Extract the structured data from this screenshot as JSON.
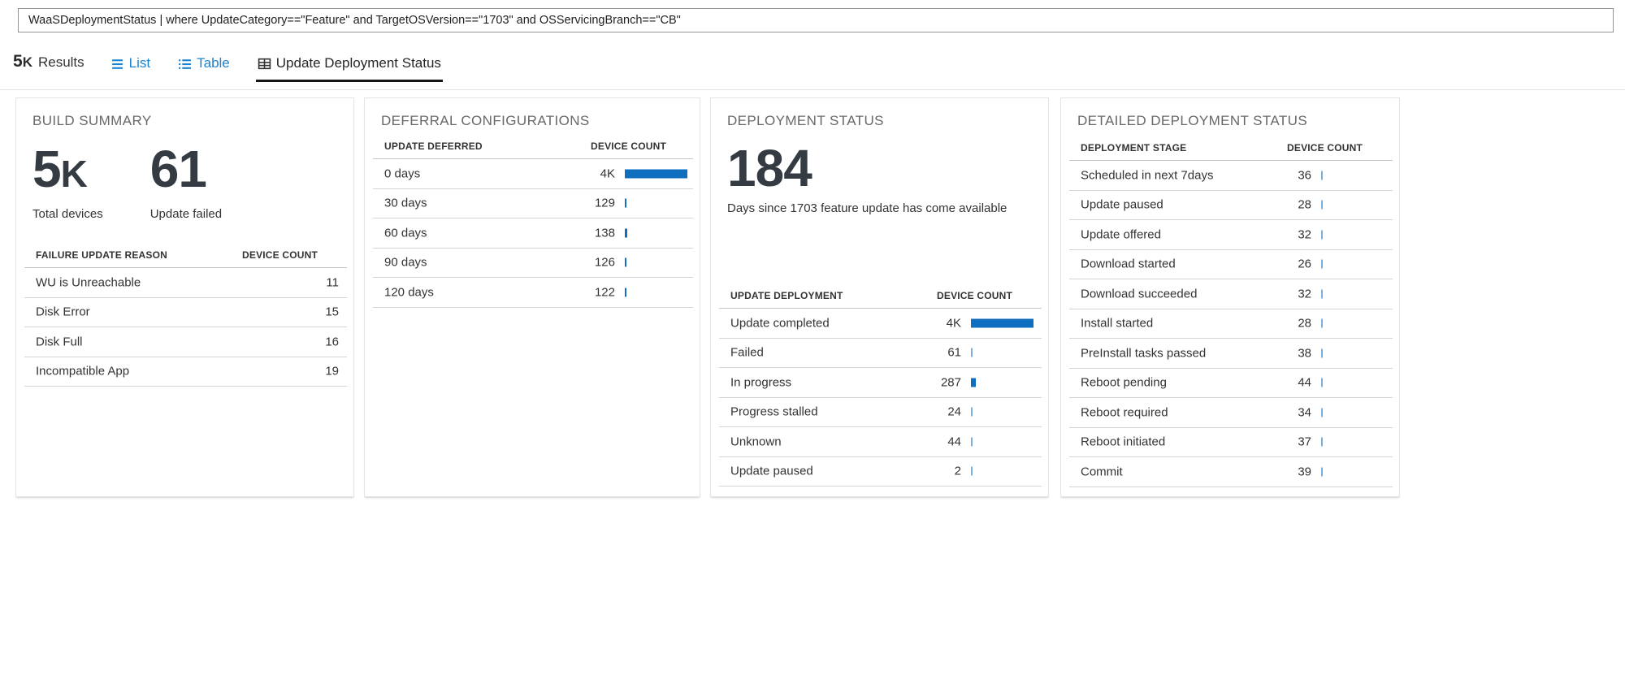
{
  "query_bar": {
    "value": "WaaSDeploymentStatus | where UpdateCategory==\"Feature\" and TargetOSVersion==\"1703\" and OSServicingBranch==\"CB\""
  },
  "results_bar": {
    "count_value": "5",
    "count_suffix": "K",
    "results_label": "Results",
    "tabs": [
      {
        "label": "List",
        "icon": "list-icon",
        "active": false
      },
      {
        "label": "Table",
        "icon": "table-icon",
        "active": false
      },
      {
        "label": "Update Deployment Status",
        "icon": "grid-table-icon",
        "active": true
      }
    ]
  },
  "colors": {
    "accent_blue": "#0e6fc1",
    "tab_blue": "#1e83d0",
    "big_number": "#343b42",
    "title_gray": "#686868"
  },
  "panels": {
    "build_summary": {
      "title": "BUILD SUMMARY",
      "stats": [
        {
          "value": "5",
          "suffix": "K",
          "label": "Total devices"
        },
        {
          "value": "61",
          "suffix": "",
          "label": "Update failed"
        }
      ],
      "table": {
        "col1": "FAILURE UPDATE REASON",
        "col2": "DEVICE COUNT",
        "has_bars": false,
        "max": 4000,
        "rows": [
          {
            "label": "WU is Unreachable",
            "value": "11",
            "n": 11
          },
          {
            "label": "Disk Error",
            "value": "15",
            "n": 15
          },
          {
            "label": "Disk Full",
            "value": "16",
            "n": 16
          },
          {
            "label": "Incompatible App",
            "value": "19",
            "n": 19
          }
        ]
      }
    },
    "deferral": {
      "title": "DEFERRAL CONFIGURATIONS",
      "table": {
        "col1": "UPDATE DEFERRED",
        "col2": "DEVICE COUNT",
        "has_bars": true,
        "max": 4000,
        "rows": [
          {
            "label": "0 days",
            "value": "4K",
            "n": 4000
          },
          {
            "label": "30 days",
            "value": "129",
            "n": 129
          },
          {
            "label": "60 days",
            "value": "138",
            "n": 138
          },
          {
            "label": "90 days",
            "value": "126",
            "n": 126
          },
          {
            "label": "120 days",
            "value": "122",
            "n": 122
          }
        ]
      }
    },
    "deployment_status": {
      "title": "DEPLOYMENT STATUS",
      "stat": {
        "value": "184",
        "suffix": "",
        "label": "Days since 1703 feature update has come available"
      },
      "table": {
        "col1": "UPDATE DEPLOYMENT",
        "col2": "DEVICE COUNT",
        "has_bars": true,
        "max": 4000,
        "rows": [
          {
            "label": "Update completed",
            "value": "4K",
            "n": 4000
          },
          {
            "label": "Failed",
            "value": "61",
            "n": 61
          },
          {
            "label": "In progress",
            "value": "287",
            "n": 287
          },
          {
            "label": "Progress stalled",
            "value": "24",
            "n": 24
          },
          {
            "label": "Unknown",
            "value": "44",
            "n": 44
          },
          {
            "label": "Update paused",
            "value": "2",
            "n": 2
          }
        ]
      }
    },
    "detailed": {
      "title": "DETAILED DEPLOYMENT STATUS",
      "table": {
        "col1": "DEPLOYMENT STAGE",
        "col2": "DEVICE COUNT",
        "has_bars": true,
        "max": 4000,
        "rows": [
          {
            "label": "Scheduled in next 7days",
            "value": "36",
            "n": 36
          },
          {
            "label": "Update paused",
            "value": "28",
            "n": 28
          },
          {
            "label": "Update offered",
            "value": "32",
            "n": 32
          },
          {
            "label": "Download started",
            "value": "26",
            "n": 26
          },
          {
            "label": "Download succeeded",
            "value": "32",
            "n": 32
          },
          {
            "label": "Install started",
            "value": "28",
            "n": 28
          },
          {
            "label": "PreInstall tasks passed",
            "value": "38",
            "n": 38
          },
          {
            "label": "Reboot pending",
            "value": "44",
            "n": 44
          },
          {
            "label": "Reboot required",
            "value": "34",
            "n": 34
          },
          {
            "label": "Reboot initiated",
            "value": "37",
            "n": 37
          },
          {
            "label": "Commit",
            "value": "39",
            "n": 39
          }
        ]
      }
    }
  }
}
